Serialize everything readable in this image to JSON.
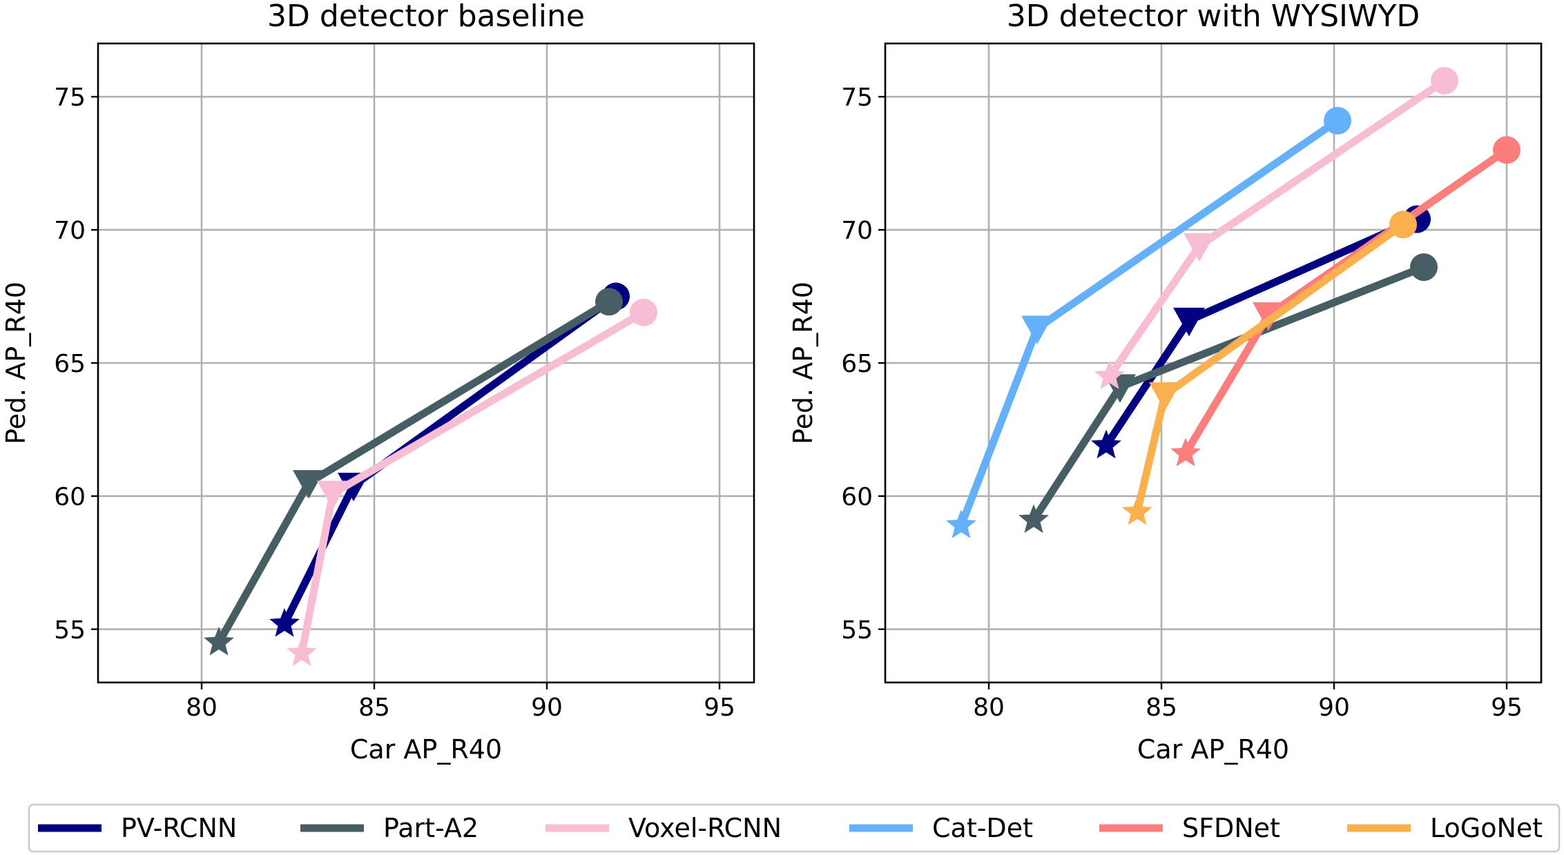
{
  "chart_data": [
    {
      "type": "line",
      "title": "3D detector baseline",
      "xlabel": "Car AP_R40",
      "ylabel": "Ped. AP_R40",
      "xlim": [
        77,
        96
      ],
      "ylim": [
        53,
        77
      ],
      "xticks": [
        80,
        85,
        90,
        95
      ],
      "yticks": [
        55,
        60,
        65,
        70,
        75
      ],
      "grid": true,
      "point_markers": [
        "star",
        "triangle-down",
        "circle"
      ],
      "series": [
        {
          "name": "PV-RCNN",
          "color": "#000080",
          "points": [
            [
              82.4,
              55.2
            ],
            [
              84.4,
              60.4
            ],
            [
              92.0,
              67.5
            ]
          ]
        },
        {
          "name": "Part-A2",
          "color": "#465e63",
          "points": [
            [
              80.5,
              54.5
            ],
            [
              83.1,
              60.5
            ],
            [
              91.8,
              67.3
            ]
          ]
        },
        {
          "name": "Voxel-RCNN",
          "color": "#f7bdd4",
          "points": [
            [
              82.9,
              54.1
            ],
            [
              83.8,
              60.1
            ],
            [
              92.8,
              66.9
            ]
          ]
        }
      ]
    },
    {
      "type": "line",
      "title": "3D detector with WYSIWYD",
      "xlabel": "Car AP_R40",
      "ylabel": "Ped. AP_R40",
      "xlim": [
        77,
        96
      ],
      "ylim": [
        53,
        77
      ],
      "xticks": [
        80,
        85,
        90,
        95
      ],
      "yticks": [
        55,
        60,
        65,
        70,
        75
      ],
      "grid": true,
      "point_markers": [
        "star",
        "triangle-down",
        "circle"
      ],
      "series": [
        {
          "name": "PV-RCNN",
          "color": "#000080",
          "points": [
            [
              83.4,
              61.9
            ],
            [
              85.8,
              66.6
            ],
            [
              92.4,
              70.4
            ]
          ]
        },
        {
          "name": "Part-A2",
          "color": "#465e63",
          "points": [
            [
              81.3,
              59.1
            ],
            [
              83.8,
              64.1
            ],
            [
              92.6,
              68.6
            ]
          ]
        },
        {
          "name": "Voxel-RCNN",
          "color": "#f7bdd4",
          "points": [
            [
              83.5,
              64.5
            ],
            [
              86.1,
              69.4
            ],
            [
              93.2,
              75.6
            ]
          ]
        },
        {
          "name": "Cat-Det",
          "color": "#64b0f9",
          "points": [
            [
              79.2,
              58.9
            ],
            [
              81.4,
              66.3
            ],
            [
              90.1,
              74.1
            ]
          ]
        },
        {
          "name": "SFDNet",
          "color": "#fb7d7c",
          "points": [
            [
              85.7,
              61.6
            ],
            [
              88.1,
              66.8
            ],
            [
              95.0,
              73.0
            ]
          ]
        },
        {
          "name": "LoGoNet",
          "color": "#fbb04f",
          "points": [
            [
              84.3,
              59.4
            ],
            [
              85.1,
              63.8
            ],
            [
              92.0,
              70.2
            ]
          ]
        }
      ]
    }
  ],
  "legend": {
    "position": "bottom",
    "entries": [
      {
        "name": "PV-RCNN",
        "color": "#000080"
      },
      {
        "name": "Part-A2",
        "color": "#465e63"
      },
      {
        "name": "Voxel-RCNN",
        "color": "#f7bdd4"
      },
      {
        "name": "Cat-Det",
        "color": "#64b0f9"
      },
      {
        "name": "SFDNet",
        "color": "#fb7d7c"
      },
      {
        "name": "LoGoNet",
        "color": "#fbb04f"
      }
    ]
  }
}
